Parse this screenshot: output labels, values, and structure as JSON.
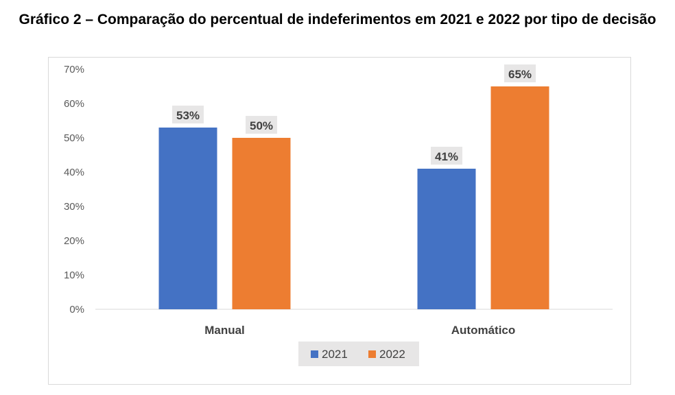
{
  "title": "Gráfico 2 – Comparação do percentual de indeferimentos em 2021 e 2022 por tipo de decisão",
  "chart_data": {
    "type": "bar",
    "title": "Gráfico 2 – Comparação do percentual de indeferimentos em 2021 e 2022 por tipo de decisão",
    "categories": [
      "Manual",
      "Automático"
    ],
    "series": [
      {
        "name": "2021",
        "values": [
          53,
          41
        ],
        "color": "#4472C4"
      },
      {
        "name": "2022",
        "values": [
          50,
          65
        ],
        "color": "#ED7D31"
      }
    ],
    "value_suffix": "%",
    "ylim": [
      0,
      70
    ],
    "yticks": [
      0,
      10,
      20,
      30,
      40,
      50,
      60,
      70
    ],
    "ytick_labels": [
      "0%",
      "10%",
      "20%",
      "30%",
      "40%",
      "50%",
      "60%",
      "70%"
    ],
    "data_labels": [
      [
        "53%",
        "41%"
      ],
      [
        "50%",
        "65%"
      ]
    ],
    "xlabel": "",
    "ylabel": "",
    "grid": false,
    "legend_position": "bottom"
  }
}
